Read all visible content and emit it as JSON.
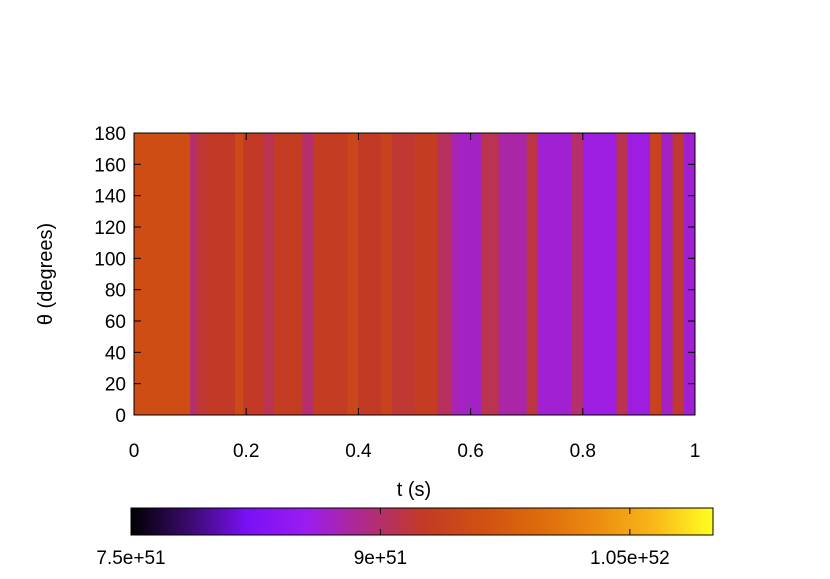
{
  "chart_data": {
    "type": "heatmap",
    "title": "",
    "xlabel": "t (s)",
    "ylabel": "θ (degrees)",
    "xlim": [
      0,
      1
    ],
    "ylim": [
      0,
      180
    ],
    "x_ticks": [
      "0",
      "0.2",
      "0.4",
      "0.6",
      "0.8",
      "1"
    ],
    "x_tick_values": [
      0,
      0.2,
      0.4,
      0.6,
      0.8,
      1
    ],
    "y_ticks": [
      "0",
      "20",
      "40",
      "60",
      "80",
      "100",
      "120",
      "140",
      "160",
      "180"
    ],
    "y_tick_values": [
      0,
      20,
      40,
      60,
      80,
      100,
      120,
      140,
      160,
      180
    ],
    "colorbar": {
      "orientation": "horizontal",
      "placement": "bottom",
      "range": [
        7.5e+51,
        1.1e+52
      ],
      "tick_labels": [
        "7.5e+51",
        "9e+51",
        "1.05e+52"
      ],
      "tick_values": [
        7.5e+51,
        9e+51,
        1.05e+52
      ],
      "colormap": [
        "#000000",
        "#3a0a6e",
        "#7a10f5",
        "#9a1cf0",
        "#b02a88",
        "#c23a26",
        "#cf5012",
        "#dd6a0c",
        "#ec8c10",
        "#f9b818",
        "#ffff22"
      ]
    },
    "grid": false,
    "legend": "none",
    "description_of_structure": "",
    "segments": [
      {
        "t": [
          0.0,
          0.1
        ],
        "v": 9.55e+51
      },
      {
        "t": [
          0.1,
          0.112
        ],
        "v": 9e+51
      },
      {
        "t": [
          0.112,
          0.13
        ],
        "v": 9.2e+51
      },
      {
        "t": [
          0.13,
          0.18
        ],
        "v": 9.25e+51
      },
      {
        "t": [
          0.18,
          0.195
        ],
        "v": 9.5e+51
      },
      {
        "t": [
          0.195,
          0.23
        ],
        "v": 9.25e+51
      },
      {
        "t": [
          0.23,
          0.25
        ],
        "v": 9.1e+51
      },
      {
        "t": [
          0.25,
          0.3
        ],
        "v": 9.3e+51
      },
      {
        "t": [
          0.3,
          0.32
        ],
        "v": 9e+51
      },
      {
        "t": [
          0.32,
          0.38
        ],
        "v": 9.3e+51
      },
      {
        "t": [
          0.38,
          0.4
        ],
        "v": 9.45e+51
      },
      {
        "t": [
          0.4,
          0.44
        ],
        "v": 9.25e+51
      },
      {
        "t": [
          0.44,
          0.46
        ],
        "v": 9.4e+51
      },
      {
        "t": [
          0.46,
          0.5
        ],
        "v": 9.2e+51
      },
      {
        "t": [
          0.5,
          0.54
        ],
        "v": 9.3e+51
      },
      {
        "t": [
          0.54,
          0.565
        ],
        "v": 9.05e+51
      },
      {
        "t": [
          0.565,
          0.58
        ],
        "v": 8.75e+51
      },
      {
        "t": [
          0.58,
          0.62
        ],
        "v": 8.7e+51
      },
      {
        "t": [
          0.62,
          0.65
        ],
        "v": 9.1e+51
      },
      {
        "t": [
          0.65,
          0.7
        ],
        "v": 8.8e+51
      },
      {
        "t": [
          0.7,
          0.72
        ],
        "v": 9.15e+51
      },
      {
        "t": [
          0.72,
          0.78
        ],
        "v": 8.65e+51
      },
      {
        "t": [
          0.78,
          0.8
        ],
        "v": 9e+51
      },
      {
        "t": [
          0.8,
          0.86
        ],
        "v": 8.6e+51
      },
      {
        "t": [
          0.86,
          0.88
        ],
        "v": 9.1e+51
      },
      {
        "t": [
          0.88,
          0.92
        ],
        "v": 8.6e+51
      },
      {
        "t": [
          0.92,
          0.94
        ],
        "v": 9.4e+51
      },
      {
        "t": [
          0.94,
          0.96
        ],
        "v": 8.7e+51
      },
      {
        "t": [
          0.96,
          0.98
        ],
        "v": 9.2e+51
      },
      {
        "t": [
          0.98,
          1.0
        ],
        "v": 8.65e+51
      }
    ]
  }
}
